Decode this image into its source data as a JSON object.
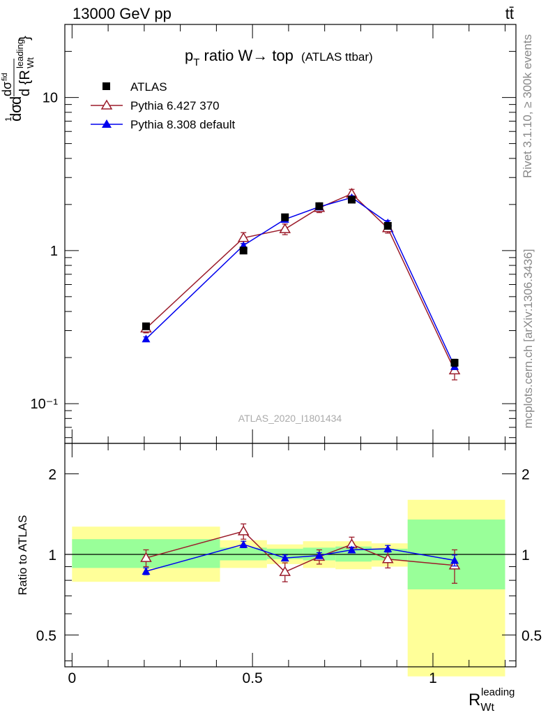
{
  "header": {
    "left": "13000 GeV pp",
    "right": "tt̄"
  },
  "side": {
    "rivet": "Rivet 3.1.10, ≥ 300k events",
    "mcplots": "mcplots.cern.ch [arXiv:1306.3436]"
  },
  "chart_data": [
    {
      "type": "scatter",
      "title_main": "p",
      "title_sub": "T",
      "title_rest": " ratio W→ top",
      "title_small": "(ATLAS ttbar)",
      "watermark": "ATLAS_2020_I1801434",
      "ylabel": "d¹/σ dσ/d{R_Wt^leading}",
      "yscale": "log",
      "ylim": [
        0.055,
        30
      ],
      "yticks": [
        {
          "value": 0.1,
          "label": "10⁻¹"
        },
        {
          "value": 1,
          "label": "1"
        },
        {
          "value": 10,
          "label": "10"
        }
      ],
      "legend_position": "top-left",
      "series": [
        {
          "name": "ATLAS",
          "color": "#000000",
          "marker": "square",
          "x": [
            0.205,
            0.475,
            0.59,
            0.685,
            0.775,
            0.875,
            1.06
          ],
          "values": [
            0.32,
            1.0,
            1.65,
            1.95,
            2.15,
            1.45,
            0.185
          ],
          "err": [
            0.012,
            0.03,
            0.05,
            0.05,
            0.06,
            0.05,
            0.01
          ]
        },
        {
          "name": "Pythia 6.427 370",
          "color": "#9b1b2a",
          "marker": "open-triangle",
          "x": [
            0.205,
            0.475,
            0.59,
            0.685,
            0.775,
            0.875,
            1.06
          ],
          "values": [
            0.31,
            1.21,
            1.38,
            1.9,
            2.35,
            1.4,
            0.165
          ],
          "err": [
            0.02,
            0.1,
            0.11,
            0.13,
            0.16,
            0.1,
            0.022
          ]
        },
        {
          "name": "Pythia 8.308 default",
          "color": "#0000ee",
          "marker": "filled-triangle",
          "x": [
            0.205,
            0.475,
            0.59,
            0.685,
            0.775,
            0.875,
            1.06
          ],
          "values": [
            0.265,
            1.08,
            1.6,
            1.93,
            2.22,
            1.52,
            0.175
          ],
          "err": [
            0.008,
            0.03,
            0.05,
            0.05,
            0.06,
            0.05,
            0.008
          ]
        }
      ]
    },
    {
      "type": "scatter",
      "ylabel": "Ratio to ATLAS",
      "xlabel": "R",
      "xlabel_sub": "Wt",
      "xlabel_sup": "leading",
      "yscale": "log",
      "ylim": [
        0.38,
        2.6
      ],
      "xlim": [
        -0.02,
        1.23
      ],
      "yticks": [
        {
          "value": 0.5,
          "label": "0.5"
        },
        {
          "value": 1,
          "label": "1"
        },
        {
          "value": 2,
          "label": "2"
        }
      ],
      "xticks": [
        {
          "value": 0,
          "label": "0"
        },
        {
          "value": 0.5,
          "label": "0.5"
        },
        {
          "value": 1,
          "label": "1"
        }
      ],
      "bands": [
        {
          "x0": 0.0,
          "x1": 0.41,
          "yellow": [
            0.79,
            1.27
          ],
          "green": [
            0.89,
            1.14
          ]
        },
        {
          "x0": 0.41,
          "x1": 0.54,
          "yellow": [
            0.89,
            1.13
          ],
          "green": [
            0.95,
            1.06
          ]
        },
        {
          "x0": 0.54,
          "x1": 0.64,
          "yellow": [
            0.92,
            1.09
          ],
          "green": [
            0.96,
            1.05
          ]
        },
        {
          "x0": 0.64,
          "x1": 0.73,
          "yellow": [
            0.89,
            1.12
          ],
          "green": [
            0.95,
            1.06
          ]
        },
        {
          "x0": 0.73,
          "x1": 0.83,
          "yellow": [
            0.88,
            1.12
          ],
          "green": [
            0.94,
            1.07
          ]
        },
        {
          "x0": 0.83,
          "x1": 0.93,
          "yellow": [
            0.9,
            1.1
          ],
          "green": [
            0.95,
            1.05
          ]
        },
        {
          "x0": 0.93,
          "x1": 1.2,
          "yellow": [
            0.35,
            1.6
          ],
          "green": [
            0.74,
            1.35
          ]
        }
      ],
      "series": [
        {
          "name": "Pythia 6.427 370",
          "color": "#9b1b2a",
          "marker": "open-triangle",
          "x": [
            0.205,
            0.475,
            0.59,
            0.685,
            0.775,
            0.875,
            1.06
          ],
          "values": [
            0.97,
            1.22,
            0.86,
            0.98,
            1.09,
            0.96,
            0.91
          ],
          "err": [
            0.07,
            0.08,
            0.07,
            0.06,
            0.07,
            0.07,
            0.13
          ]
        },
        {
          "name": "Pythia 8.308 default",
          "color": "#0000ee",
          "marker": "filled-triangle",
          "x": [
            0.205,
            0.475,
            0.59,
            0.685,
            0.775,
            0.875,
            1.06
          ],
          "values": [
            0.865,
            1.09,
            0.97,
            0.99,
            1.04,
            1.05,
            0.95
          ],
          "err": [
            0.025,
            0.03,
            0.025,
            0.025,
            0.025,
            0.03,
            0.045
          ]
        }
      ]
    }
  ]
}
